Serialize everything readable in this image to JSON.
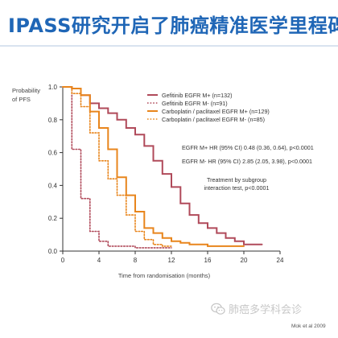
{
  "slide": {
    "title": "IPASS研究开启了肺癌精准医学里程碑",
    "credit": "Mok et al 2009",
    "watermark": "肺癌多学科会诊",
    "watermark_icon": "wechat-icon"
  },
  "chart_data": {
    "type": "line",
    "title": "",
    "xlabel": "Time from randomisation (months)",
    "ylabel": "Probability of PFS",
    "xlim": [
      0,
      24
    ],
    "ylim": [
      0,
      1.0
    ],
    "xticks": [
      0,
      4,
      8,
      12,
      16,
      20,
      24
    ],
    "yticks": [
      0,
      0.2,
      0.4,
      0.6,
      0.8,
      1.0
    ],
    "ytick_labels": [
      "0.0",
      "0.2",
      "0.4",
      "0.6",
      "0.8",
      "1.0"
    ],
    "grid": false,
    "legend_position": "top-right",
    "series": [
      {
        "name": "Gefitinib EGFR M+ (n=132)",
        "color": "#b04a5a",
        "dash": "solid",
        "x": [
          0,
          1,
          2,
          3,
          4,
          5,
          6,
          7,
          8,
          9,
          10,
          11,
          12,
          13,
          14,
          15,
          16,
          17,
          18,
          19,
          20,
          21,
          22
        ],
        "y": [
          1.0,
          0.99,
          0.95,
          0.9,
          0.87,
          0.84,
          0.8,
          0.75,
          0.71,
          0.64,
          0.55,
          0.47,
          0.39,
          0.29,
          0.22,
          0.17,
          0.14,
          0.11,
          0.08,
          0.06,
          0.04,
          0.04,
          0.04
        ]
      },
      {
        "name": "Gefitinib EGFR M- (n=91)",
        "color": "#b04a5a",
        "dash": "dotted",
        "x": [
          0,
          1,
          2,
          3,
          4,
          5,
          6,
          7,
          8,
          9,
          10,
          11,
          12
        ],
        "y": [
          1.0,
          0.62,
          0.32,
          0.12,
          0.06,
          0.03,
          0.03,
          0.03,
          0.02,
          0.02,
          0.02,
          0.02,
          0.02
        ]
      },
      {
        "name": "Carboplatin / paclitaxel EGFR M+ (n=129)",
        "color": "#e8851c",
        "dash": "solid",
        "x": [
          0,
          1,
          2,
          3,
          4,
          5,
          6,
          7,
          8,
          9,
          10,
          11,
          12,
          13,
          14,
          15,
          16,
          17,
          18,
          19,
          20
        ],
        "y": [
          1.0,
          0.99,
          0.95,
          0.85,
          0.75,
          0.62,
          0.45,
          0.34,
          0.24,
          0.14,
          0.11,
          0.08,
          0.06,
          0.05,
          0.04,
          0.04,
          0.03,
          0.03,
          0.03,
          0.03,
          0.03
        ]
      },
      {
        "name": "Carboplatin / paclitaxel EGFR M- (n=85)",
        "color": "#e8851c",
        "dash": "dotted",
        "x": [
          0,
          1,
          2,
          3,
          4,
          5,
          6,
          7,
          8,
          9,
          10,
          11,
          12
        ],
        "y": [
          1.0,
          0.96,
          0.88,
          0.72,
          0.55,
          0.44,
          0.34,
          0.22,
          0.12,
          0.07,
          0.04,
          0.03,
          0.03
        ]
      }
    ],
    "annotations": [
      "EGFR M+ HR (95% CI) 0.48 (0.36, 0.64), p<0.0001",
      "EGFR M- HR (95% CI) 2.85 (2.05, 3.98), p<0.0001",
      "Treatment by subgroup",
      "interaction test, p<0.0001"
    ]
  }
}
